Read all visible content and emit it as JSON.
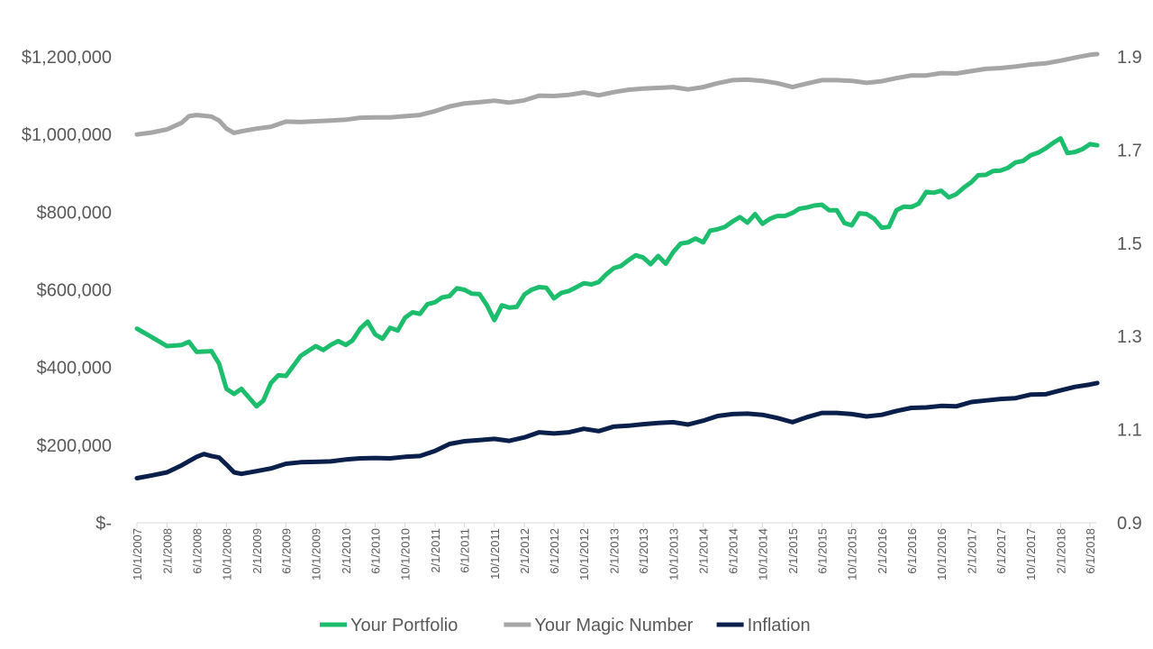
{
  "chart_data": {
    "type": "line",
    "title": "",
    "xlabel": "",
    "ylabel": "",
    "y_left": {
      "range": [
        0,
        1200000
      ],
      "ticks": [
        0,
        200000,
        400000,
        600000,
        800000,
        1000000,
        1200000
      ],
      "tick_labels": [
        "$-",
        "$200,000",
        "$400,000",
        "$600,000",
        "$800,000",
        "$1,000,000",
        "$1,200,000"
      ]
    },
    "y_right": {
      "range": [
        0.9,
        1.9
      ],
      "ticks": [
        0.9,
        1.1,
        1.3,
        1.5,
        1.7,
        1.9
      ],
      "tick_labels": [
        "0.9",
        "1.1",
        "1.3",
        "1.5",
        "1.7",
        "1.9"
      ]
    },
    "x_range": [
      "10/1/2007",
      "6/1/2018"
    ],
    "x_tick_labels": [
      "10/1/2007",
      "2/1/2008",
      "6/1/2008",
      "10/1/2008",
      "2/1/2009",
      "6/1/2009",
      "10/1/2009",
      "2/1/2010",
      "6/1/2010",
      "10/1/2010",
      "2/1/2011",
      "6/1/2011",
      "10/1/2011",
      "2/1/2012",
      "6/1/2012",
      "10/1/2012",
      "2/1/2013",
      "6/1/2013",
      "10/1/2013",
      "2/1/2014",
      "6/1/2014",
      "10/1/2014",
      "2/1/2015",
      "6/1/2015",
      "10/1/2015",
      "2/1/2016",
      "6/1/2016",
      "10/1/2016",
      "2/1/2017",
      "6/1/2017",
      "10/1/2017",
      "2/1/2018",
      "6/1/2018"
    ],
    "grid": false,
    "legend_position": "bottom",
    "series": [
      {
        "name": "Your Portfolio",
        "axis": "left",
        "color": "#1DBD6E",
        "points": [
          [
            "10/1/2007",
            500000
          ],
          [
            "12/1/2007",
            478000
          ],
          [
            "2/1/2008",
            455000
          ],
          [
            "4/1/2008",
            458000
          ],
          [
            "5/1/2008",
            466000
          ],
          [
            "6/1/2008",
            440000
          ],
          [
            "8/1/2008",
            442000
          ],
          [
            "9/1/2008",
            410000
          ],
          [
            "10/1/2008",
            345000
          ],
          [
            "11/1/2008",
            332000
          ],
          [
            "12/1/2008",
            345000
          ],
          [
            "2/1/2009",
            300000
          ],
          [
            "3/1/2009",
            315000
          ],
          [
            "4/1/2009",
            360000
          ],
          [
            "5/1/2009",
            380000
          ],
          [
            "6/1/2009",
            378000
          ],
          [
            "8/1/2009",
            430000
          ],
          [
            "10/1/2009",
            455000
          ],
          [
            "11/1/2009",
            445000
          ],
          [
            "12/1/2009",
            458000
          ],
          [
            "1/1/2010",
            468000
          ],
          [
            "2/1/2010",
            458000
          ],
          [
            "3/1/2010",
            470000
          ],
          [
            "4/1/2010",
            500000
          ],
          [
            "5/1/2010",
            518000
          ],
          [
            "6/1/2010",
            485000
          ],
          [
            "7/1/2010",
            474000
          ],
          [
            "8/1/2010",
            502000
          ],
          [
            "9/1/2010",
            495000
          ],
          [
            "10/1/2010",
            528000
          ],
          [
            "11/1/2010",
            542000
          ],
          [
            "12/1/2010",
            538000
          ],
          [
            "1/1/2011",
            563000
          ],
          [
            "2/1/2011",
            568000
          ],
          [
            "3/1/2011",
            580000
          ],
          [
            "4/1/2011",
            584000
          ],
          [
            "5/1/2011",
            604000
          ],
          [
            "6/1/2011",
            600000
          ],
          [
            "7/1/2011",
            590000
          ],
          [
            "8/1/2011",
            589000
          ],
          [
            "9/1/2011",
            560000
          ],
          [
            "10/1/2011",
            522000
          ],
          [
            "11/1/2011",
            560000
          ],
          [
            "12/1/2011",
            554000
          ],
          [
            "1/1/2012",
            556000
          ],
          [
            "2/1/2012",
            588000
          ],
          [
            "3/1/2012",
            600000
          ],
          [
            "4/1/2012",
            607000
          ],
          [
            "5/1/2012",
            605000
          ],
          [
            "6/1/2012",
            578000
          ],
          [
            "7/1/2012",
            592000
          ],
          [
            "8/1/2012",
            597000
          ],
          [
            "9/1/2012",
            607000
          ],
          [
            "10/1/2012",
            617000
          ],
          [
            "11/1/2012",
            614000
          ],
          [
            "12/1/2012",
            620000
          ],
          [
            "1/1/2013",
            640000
          ],
          [
            "2/1/2013",
            656000
          ],
          [
            "3/1/2013",
            661000
          ],
          [
            "4/1/2013",
            676000
          ],
          [
            "5/1/2013",
            689000
          ],
          [
            "6/1/2013",
            683000
          ],
          [
            "7/1/2013",
            666000
          ],
          [
            "8/1/2013",
            687000
          ],
          [
            "9/1/2013",
            667000
          ],
          [
            "10/1/2013",
            697000
          ],
          [
            "11/1/2013",
            719000
          ],
          [
            "12/1/2013",
            722000
          ],
          [
            "1/1/2014",
            732000
          ],
          [
            "2/1/2014",
            722000
          ],
          [
            "3/1/2014",
            752000
          ],
          [
            "4/1/2014",
            756000
          ],
          [
            "5/1/2014",
            762000
          ],
          [
            "6/1/2014",
            776000
          ],
          [
            "7/1/2014",
            787000
          ],
          [
            "8/1/2014",
            773000
          ],
          [
            "9/1/2014",
            795000
          ],
          [
            "10/1/2014",
            770000
          ],
          [
            "11/1/2014",
            783000
          ],
          [
            "12/1/2014",
            790000
          ],
          [
            "1/1/2015",
            790000
          ],
          [
            "2/1/2015",
            798000
          ],
          [
            "3/1/2015",
            809000
          ],
          [
            "4/1/2015",
            812000
          ],
          [
            "5/1/2015",
            817000
          ],
          [
            "6/1/2015",
            819000
          ],
          [
            "7/1/2015",
            805000
          ],
          [
            "8/1/2015",
            805000
          ],
          [
            "9/1/2015",
            772000
          ],
          [
            "10/1/2015",
            766000
          ],
          [
            "11/1/2015",
            797000
          ],
          [
            "12/1/2015",
            795000
          ],
          [
            "1/1/2016",
            783000
          ],
          [
            "2/1/2016",
            760000
          ],
          [
            "3/1/2016",
            762000
          ],
          [
            "4/1/2016",
            805000
          ],
          [
            "5/1/2016",
            814000
          ],
          [
            "6/1/2016",
            813000
          ],
          [
            "7/1/2016",
            822000
          ],
          [
            "8/1/2016",
            852000
          ],
          [
            "9/1/2016",
            850000
          ],
          [
            "10/1/2016",
            855000
          ],
          [
            "11/1/2016",
            838000
          ],
          [
            "12/1/2016",
            846000
          ],
          [
            "1/1/2017",
            863000
          ],
          [
            "2/1/2017",
            877000
          ],
          [
            "3/1/2017",
            895000
          ],
          [
            "4/1/2017",
            896000
          ],
          [
            "5/1/2017",
            906000
          ],
          [
            "6/1/2017",
            907000
          ],
          [
            "7/1/2017",
            914000
          ],
          [
            "8/1/2017",
            928000
          ],
          [
            "9/1/2017",
            932000
          ],
          [
            "10/1/2017",
            946000
          ],
          [
            "11/1/2017",
            953000
          ],
          [
            "12/1/2017",
            964000
          ],
          [
            "1/1/2018",
            978000
          ],
          [
            "2/1/2018",
            990000
          ],
          [
            "3/1/2018",
            952000
          ],
          [
            "4/1/2018",
            955000
          ],
          [
            "5/1/2018",
            962000
          ],
          [
            "6/1/2018",
            975000
          ],
          [
            "7/1/2018",
            972000
          ]
        ]
      },
      {
        "name": "Your Magic Number",
        "axis": "left",
        "color": "#A6A6A6",
        "points": [
          [
            "10/1/2007",
            1000000
          ],
          [
            "12/1/2007",
            1005000
          ],
          [
            "2/1/2008",
            1013000
          ],
          [
            "4/1/2008",
            1030000
          ],
          [
            "5/1/2008",
            1047000
          ],
          [
            "6/1/2008",
            1050000
          ],
          [
            "8/1/2008",
            1046000
          ],
          [
            "9/1/2008",
            1036000
          ],
          [
            "10/1/2008",
            1015000
          ],
          [
            "11/1/2008",
            1004000
          ],
          [
            "12/1/2008",
            1008000
          ],
          [
            "2/1/2009",
            1015000
          ],
          [
            "4/1/2009",
            1020000
          ],
          [
            "6/1/2009",
            1033000
          ],
          [
            "8/1/2009",
            1032000
          ],
          [
            "10/1/2009",
            1034000
          ],
          [
            "12/1/2009",
            1036000
          ],
          [
            "2/1/2010",
            1038000
          ],
          [
            "4/1/2010",
            1043000
          ],
          [
            "6/1/2010",
            1044000
          ],
          [
            "8/1/2010",
            1044000
          ],
          [
            "10/1/2010",
            1047000
          ],
          [
            "12/1/2010",
            1050000
          ],
          [
            "2/1/2011",
            1060000
          ],
          [
            "4/1/2011",
            1072000
          ],
          [
            "6/1/2011",
            1080000
          ],
          [
            "8/1/2011",
            1083000
          ],
          [
            "10/1/2011",
            1087000
          ],
          [
            "12/1/2011",
            1082000
          ],
          [
            "2/1/2012",
            1088000
          ],
          [
            "4/1/2012",
            1100000
          ],
          [
            "6/1/2012",
            1099000
          ],
          [
            "8/1/2012",
            1102000
          ],
          [
            "10/1/2012",
            1108000
          ],
          [
            "12/1/2012",
            1101000
          ],
          [
            "2/1/2013",
            1109000
          ],
          [
            "4/1/2013",
            1115000
          ],
          [
            "6/1/2013",
            1118000
          ],
          [
            "8/1/2013",
            1120000
          ],
          [
            "10/1/2013",
            1122000
          ],
          [
            "12/1/2013",
            1116000
          ],
          [
            "2/1/2014",
            1122000
          ],
          [
            "4/1/2014",
            1132000
          ],
          [
            "6/1/2014",
            1140000
          ],
          [
            "8/1/2014",
            1141000
          ],
          [
            "10/1/2014",
            1138000
          ],
          [
            "12/1/2014",
            1132000
          ],
          [
            "2/1/2015",
            1122000
          ],
          [
            "4/1/2015",
            1131000
          ],
          [
            "6/1/2015",
            1140000
          ],
          [
            "8/1/2015",
            1140000
          ],
          [
            "10/1/2015",
            1138000
          ],
          [
            "12/1/2015",
            1133000
          ],
          [
            "2/1/2016",
            1137000
          ],
          [
            "4/1/2016",
            1145000
          ],
          [
            "6/1/2016",
            1152000
          ],
          [
            "8/1/2016",
            1152000
          ],
          [
            "10/1/2016",
            1158000
          ],
          [
            "12/1/2016",
            1157000
          ],
          [
            "2/1/2017",
            1163000
          ],
          [
            "4/1/2017",
            1169000
          ],
          [
            "6/1/2017",
            1171000
          ],
          [
            "8/1/2017",
            1175000
          ],
          [
            "10/1/2017",
            1180000
          ],
          [
            "12/1/2017",
            1183000
          ],
          [
            "2/1/2018",
            1190000
          ],
          [
            "4/1/2018",
            1198000
          ],
          [
            "6/1/2018",
            1205000
          ],
          [
            "7/1/2018",
            1207000
          ]
        ]
      },
      {
        "name": "Inflation",
        "axis": "left",
        "color": "#0B1F4B",
        "points": [
          [
            "10/1/2007",
            115000
          ],
          [
            "12/1/2007",
            122000
          ],
          [
            "2/1/2008",
            130000
          ],
          [
            "4/1/2008",
            148000
          ],
          [
            "6/1/2008",
            170000
          ],
          [
            "7/1/2008",
            177000
          ],
          [
            "8/1/2008",
            172000
          ],
          [
            "9/1/2008",
            168000
          ],
          [
            "10/1/2008",
            150000
          ],
          [
            "11/1/2008",
            130000
          ],
          [
            "12/1/2008",
            126000
          ],
          [
            "2/1/2009",
            133000
          ],
          [
            "4/1/2009",
            140000
          ],
          [
            "6/1/2009",
            152000
          ],
          [
            "8/1/2009",
            156000
          ],
          [
            "10/1/2009",
            157000
          ],
          [
            "12/1/2009",
            158000
          ],
          [
            "2/1/2010",
            163000
          ],
          [
            "4/1/2010",
            166000
          ],
          [
            "6/1/2010",
            167000
          ],
          [
            "8/1/2010",
            166000
          ],
          [
            "10/1/2010",
            170000
          ],
          [
            "12/1/2010",
            172000
          ],
          [
            "2/1/2011",
            185000
          ],
          [
            "4/1/2011",
            203000
          ],
          [
            "6/1/2011",
            210000
          ],
          [
            "8/1/2011",
            213000
          ],
          [
            "10/1/2011",
            216000
          ],
          [
            "12/1/2011",
            211000
          ],
          [
            "2/1/2012",
            220000
          ],
          [
            "4/1/2012",
            233000
          ],
          [
            "6/1/2012",
            230000
          ],
          [
            "8/1/2012",
            233000
          ],
          [
            "10/1/2012",
            242000
          ],
          [
            "12/1/2012",
            236000
          ],
          [
            "2/1/2013",
            248000
          ],
          [
            "4/1/2013",
            250000
          ],
          [
            "6/1/2013",
            254000
          ],
          [
            "8/1/2013",
            257000
          ],
          [
            "10/1/2013",
            259000
          ],
          [
            "12/1/2013",
            253000
          ],
          [
            "2/1/2014",
            263000
          ],
          [
            "4/1/2014",
            275000
          ],
          [
            "6/1/2014",
            280000
          ],
          [
            "8/1/2014",
            281000
          ],
          [
            "10/1/2014",
            278000
          ],
          [
            "12/1/2014",
            270000
          ],
          [
            "2/1/2015",
            259000
          ],
          [
            "4/1/2015",
            272000
          ],
          [
            "6/1/2015",
            283000
          ],
          [
            "8/1/2015",
            283000
          ],
          [
            "10/1/2015",
            280000
          ],
          [
            "12/1/2015",
            274000
          ],
          [
            "2/1/2016",
            278000
          ],
          [
            "4/1/2016",
            288000
          ],
          [
            "6/1/2016",
            296000
          ],
          [
            "8/1/2016",
            297000
          ],
          [
            "10/1/2016",
            301000
          ],
          [
            "12/1/2016",
            300000
          ],
          [
            "2/1/2017",
            311000
          ],
          [
            "4/1/2017",
            315000
          ],
          [
            "6/1/2017",
            319000
          ],
          [
            "8/1/2017",
            321000
          ],
          [
            "10/1/2017",
            330000
          ],
          [
            "12/1/2017",
            331000
          ],
          [
            "2/1/2018",
            341000
          ],
          [
            "4/1/2018",
            350000
          ],
          [
            "6/1/2018",
            356000
          ],
          [
            "7/1/2018",
            360000
          ]
        ]
      }
    ]
  }
}
